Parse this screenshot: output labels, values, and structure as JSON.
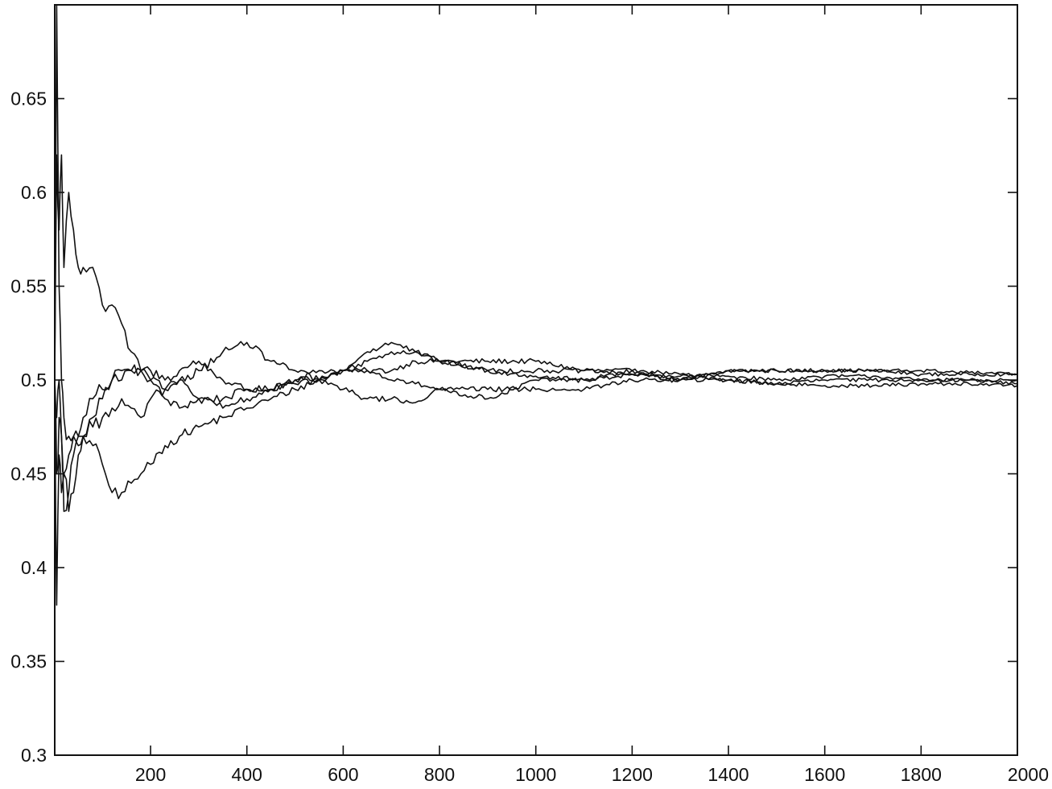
{
  "chart_data": {
    "type": "line",
    "title": "",
    "xlabel": "",
    "ylabel": "",
    "xlim": [
      1,
      2000
    ],
    "ylim": [
      0.3,
      0.7
    ],
    "xticks": [
      200,
      400,
      600,
      800,
      1000,
      1200,
      1400,
      1600,
      1800,
      2000
    ],
    "yticks": [
      0.3,
      0.35,
      0.4,
      0.45,
      0.5,
      0.55,
      0.6,
      0.65
    ],
    "ytick_labels": [
      "0.3",
      "0.35",
      "0.4",
      "0.45",
      "0.5",
      "0.55",
      "0.6",
      "0.65"
    ],
    "xtick_labels": [
      "200",
      "400",
      "600",
      "800",
      "1000",
      "1200",
      "1400",
      "1600",
      "1800",
      "2000"
    ],
    "grid": false,
    "legend": "none",
    "line_color": "#111111",
    "series": [
      {
        "x": [
          1,
          5,
          10,
          15,
          20,
          30,
          40,
          50,
          60,
          80,
          100,
          120,
          140,
          160,
          180,
          200,
          230,
          260,
          300,
          350,
          400,
          450,
          500,
          550,
          600,
          650,
          700,
          750,
          800,
          900,
          1000,
          1100,
          1200,
          1300,
          1400,
          1500,
          1600,
          1700,
          1800,
          1900,
          2000
        ],
        "y": [
          0.5,
          0.62,
          0.58,
          0.62,
          0.56,
          0.6,
          0.58,
          0.56,
          0.56,
          0.56,
          0.54,
          0.54,
          0.53,
          0.515,
          0.505,
          0.5,
          0.49,
          0.485,
          0.49,
          0.49,
          0.495,
          0.495,
          0.5,
          0.505,
          0.505,
          0.505,
          0.505,
          0.51,
          0.51,
          0.51,
          0.51,
          0.505,
          0.505,
          0.5,
          0.505,
          0.505,
          0.505,
          0.505,
          0.503,
          0.503,
          0.503
        ]
      },
      {
        "x": [
          1,
          5,
          10,
          15,
          20,
          30,
          40,
          50,
          60,
          80,
          100,
          120,
          140,
          160,
          180,
          200,
          230,
          260,
          300,
          350,
          400,
          450,
          500,
          550,
          600,
          650,
          700,
          750,
          800,
          900,
          1000,
          1100,
          1200,
          1300,
          1400,
          1500,
          1600,
          1700,
          1800,
          1900,
          2000
        ],
        "y": [
          0.5,
          0.38,
          0.46,
          0.44,
          0.45,
          0.43,
          0.44,
          0.46,
          0.47,
          0.465,
          0.455,
          0.44,
          0.44,
          0.445,
          0.45,
          0.455,
          0.465,
          0.47,
          0.475,
          0.48,
          0.485,
          0.49,
          0.495,
          0.5,
          0.505,
          0.51,
          0.515,
          0.515,
          0.51,
          0.505,
          0.505,
          0.505,
          0.503,
          0.502,
          0.502,
          0.5,
          0.502,
          0.502,
          0.5,
          0.5,
          0.498
        ]
      },
      {
        "x": [
          1,
          5,
          10,
          15,
          20,
          30,
          40,
          50,
          60,
          80,
          100,
          120,
          140,
          160,
          180,
          200,
          230,
          260,
          300,
          350,
          400,
          450,
          500,
          550,
          600,
          650,
          700,
          750,
          800,
          900,
          1000,
          1100,
          1200,
          1300,
          1400,
          1500,
          1600,
          1700,
          1800,
          1900,
          2000
        ],
        "y": [
          0.5,
          0.7,
          0.55,
          0.5,
          0.48,
          0.47,
          0.47,
          0.465,
          0.47,
          0.48,
          0.49,
          0.5,
          0.5,
          0.505,
          0.505,
          0.505,
          0.5,
          0.505,
          0.51,
          0.5,
          0.495,
          0.495,
          0.498,
          0.5,
          0.505,
          0.515,
          0.52,
          0.515,
          0.51,
          0.505,
          0.502,
          0.5,
          0.503,
          0.5,
          0.505,
          0.505,
          0.505,
          0.505,
          0.505,
          0.504,
          0.503
        ]
      },
      {
        "x": [
          1,
          5,
          10,
          15,
          20,
          30,
          40,
          50,
          60,
          80,
          100,
          120,
          140,
          160,
          180,
          200,
          230,
          260,
          300,
          350,
          400,
          450,
          500,
          550,
          600,
          650,
          700,
          750,
          800,
          900,
          1000,
          1100,
          1200,
          1300,
          1400,
          1500,
          1600,
          1700,
          1800,
          1900,
          2000
        ],
        "y": [
          0.5,
          0.45,
          0.48,
          0.47,
          0.43,
          0.44,
          0.46,
          0.47,
          0.48,
          0.49,
          0.495,
          0.5,
          0.505,
          0.505,
          0.505,
          0.5,
          0.495,
          0.5,
          0.505,
          0.515,
          0.52,
          0.51,
          0.505,
          0.5,
          0.495,
          0.49,
          0.49,
          0.488,
          0.495,
          0.49,
          0.5,
          0.5,
          0.505,
          0.503,
          0.5,
          0.498,
          0.5,
          0.5,
          0.5,
          0.5,
          0.5
        ]
      },
      {
        "x": [
          1,
          5,
          10,
          15,
          20,
          30,
          40,
          50,
          60,
          80,
          100,
          120,
          140,
          160,
          180,
          200,
          230,
          260,
          300,
          350,
          400,
          450,
          500,
          550,
          600,
          650,
          700,
          750,
          800,
          900,
          1000,
          1100,
          1200,
          1300,
          1400,
          1500,
          1600,
          1700,
          1800,
          1900,
          2000
        ],
        "y": [
          0.5,
          0.48,
          0.5,
          0.47,
          0.45,
          0.46,
          0.47,
          0.47,
          0.47,
          0.475,
          0.48,
          0.485,
          0.49,
          0.485,
          0.48,
          0.49,
          0.495,
          0.5,
          0.49,
          0.485,
          0.49,
          0.495,
          0.5,
          0.5,
          0.505,
          0.505,
          0.5,
          0.498,
          0.495,
          0.495,
          0.495,
          0.495,
          0.5,
          0.5,
          0.5,
          0.498,
          0.497,
          0.497,
          0.498,
          0.498,
          0.497
        ]
      }
    ]
  }
}
